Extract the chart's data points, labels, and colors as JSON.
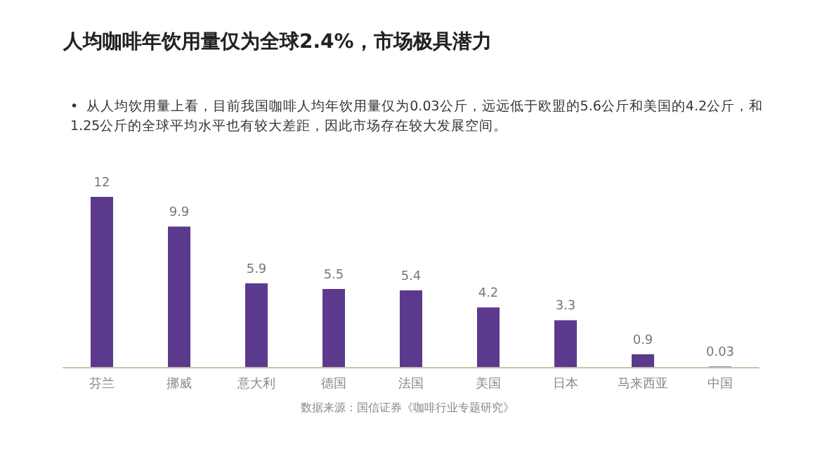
{
  "chart_data": {
    "type": "bar",
    "title": "人均咖啡年饮用量仅为全球2.4%，市场极具潜力",
    "subtitle": "•  从人均饮用量上看，目前我国咖啡人均年饮用量仅为0.03公斤，远远低于欧盟的5.6公斤和美国的4.2公斤，和1.25公斤的全球平均水平也有较大差距，因此市场存在较大发展空间。",
    "categories": [
      "芬兰",
      "挪威",
      "意大利",
      "德国",
      "法国",
      "美国",
      "日本",
      "马来西亚",
      "中国"
    ],
    "values": [
      12,
      9.9,
      5.9,
      5.5,
      5.4,
      4.2,
      3.3,
      0.9,
      0.03
    ],
    "color": "#5b3a8e",
    "data_labels": true,
    "annotations": [
      "数据来源：国信证券《咖啡行业专题研究》"
    ]
  }
}
